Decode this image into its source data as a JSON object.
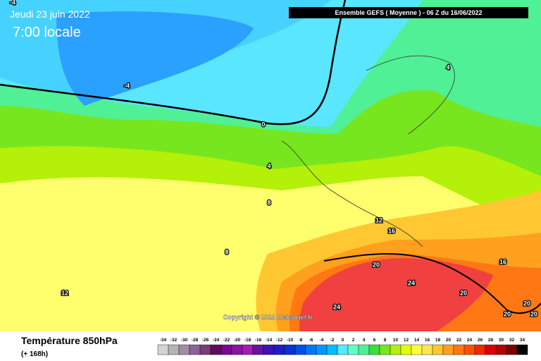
{
  "header": {
    "date": "Jeudi 23 juin 2022",
    "time": "7:00 locale",
    "run": "Ensemble GEFS  ( Moyenne )  -  06 Z du 16/06/2022"
  },
  "copyright": "Copyright © 2022 Meteociel.fr",
  "footer": {
    "title": "Température 850hPa",
    "lead": "(+ 168h)"
  },
  "legend": {
    "values": [
      -34,
      -32,
      -30,
      -28,
      -26,
      -24,
      -22,
      -20,
      -18,
      -16,
      -14,
      -12,
      -10,
      -8,
      -6,
      -4,
      -2,
      0,
      2,
      4,
      6,
      8,
      10,
      12,
      14,
      16,
      18,
      20,
      22,
      24,
      26,
      28,
      30,
      32,
      34
    ],
    "colors": [
      "#d4d4d4",
      "#b4b4b4",
      "#a08ca8",
      "#8c6496",
      "#783c78",
      "#640a64",
      "#780a8c",
      "#8c14a0",
      "#a01eb4",
      "#6414a0",
      "#3c14b4",
      "#1e1ec8",
      "#0a32d2",
      "#0050e6",
      "#0078f0",
      "#0096ff",
      "#00beff",
      "#5ae6ff",
      "#64ffc8",
      "#50f096",
      "#3cdc3c",
      "#78e61e",
      "#b4f00a",
      "#e6ff00",
      "#ffff3c",
      "#ffe650",
      "#ffc832",
      "#ffa01e",
      "#ff7814",
      "#ff5000",
      "#f02800",
      "#dc0000",
      "#b40000",
      "#780000",
      "#000000"
    ]
  },
  "contour_labels": [
    "-4",
    "-4",
    "0",
    "4",
    "4",
    "8",
    "8",
    "12",
    "12",
    "16",
    "16",
    "20",
    "24",
    "20",
    "24",
    "20",
    "20",
    "20"
  ]
}
